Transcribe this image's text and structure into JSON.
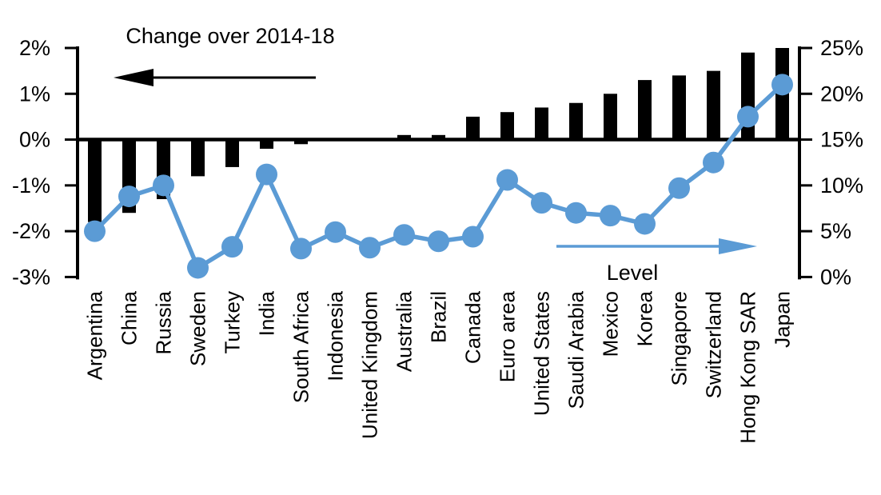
{
  "chart_data": {
    "type": "combo-bar-line",
    "title": "",
    "categories": [
      "Argentina",
      "China",
      "Russia",
      "Sweden",
      "Turkey",
      "India",
      "South Africa",
      "Indonesia",
      "United Kingdom",
      "Australia",
      "Brazil",
      "Canada",
      "Euro area",
      "United States",
      "Saudi Arabia",
      "Mexico",
      "Korea",
      "Singapore",
      "Switzerland",
      "Hong Kong SAR",
      "Japan"
    ],
    "series": [
      {
        "name": "Change over 2014-18",
        "type": "bar",
        "axis": "left",
        "color": "#000000",
        "values": [
          -1.8,
          -1.6,
          -1.3,
          -0.8,
          -0.6,
          -0.2,
          -0.1,
          0,
          0,
          0.1,
          0.1,
          0.5,
          0.6,
          0.7,
          0.8,
          1.0,
          1.3,
          1.4,
          1.5,
          1.9,
          2.0
        ]
      },
      {
        "name": "Level",
        "type": "line",
        "axis": "right",
        "color": "#5B9BD5",
        "values": [
          5.0,
          8.8,
          10.0,
          1.0,
          3.3,
          11.2,
          3.1,
          4.9,
          3.2,
          4.6,
          3.9,
          4.4,
          10.6,
          8.1,
          7.0,
          6.7,
          5.8,
          9.7,
          12.5,
          17.5,
          21.0
        ]
      }
    ],
    "left_axis": {
      "min": -3,
      "max": 2,
      "tick_values": [
        2,
        1,
        0,
        -1,
        -2,
        -3
      ],
      "ticks": [
        "2%",
        "1%",
        "0%",
        "-1%",
        "-2%",
        "-3%"
      ]
    },
    "right_axis": {
      "min": 0,
      "max": 25,
      "tick_values": [
        25,
        20,
        15,
        10,
        5,
        0
      ],
      "ticks": [
        "25%",
        "20%",
        "15%",
        "10%",
        "5%",
        "0%"
      ]
    },
    "annotations": {
      "change_label": "Change over 2014-18",
      "change_arrow_direction": "left",
      "level_label": "Level",
      "level_arrow_direction": "right"
    },
    "layout_hints": {
      "grid": false,
      "legend": "none",
      "zero_line": true,
      "category_labels_rotated_90": true,
      "bar_color": "#000000",
      "line_color": "#5B9BD5"
    }
  }
}
